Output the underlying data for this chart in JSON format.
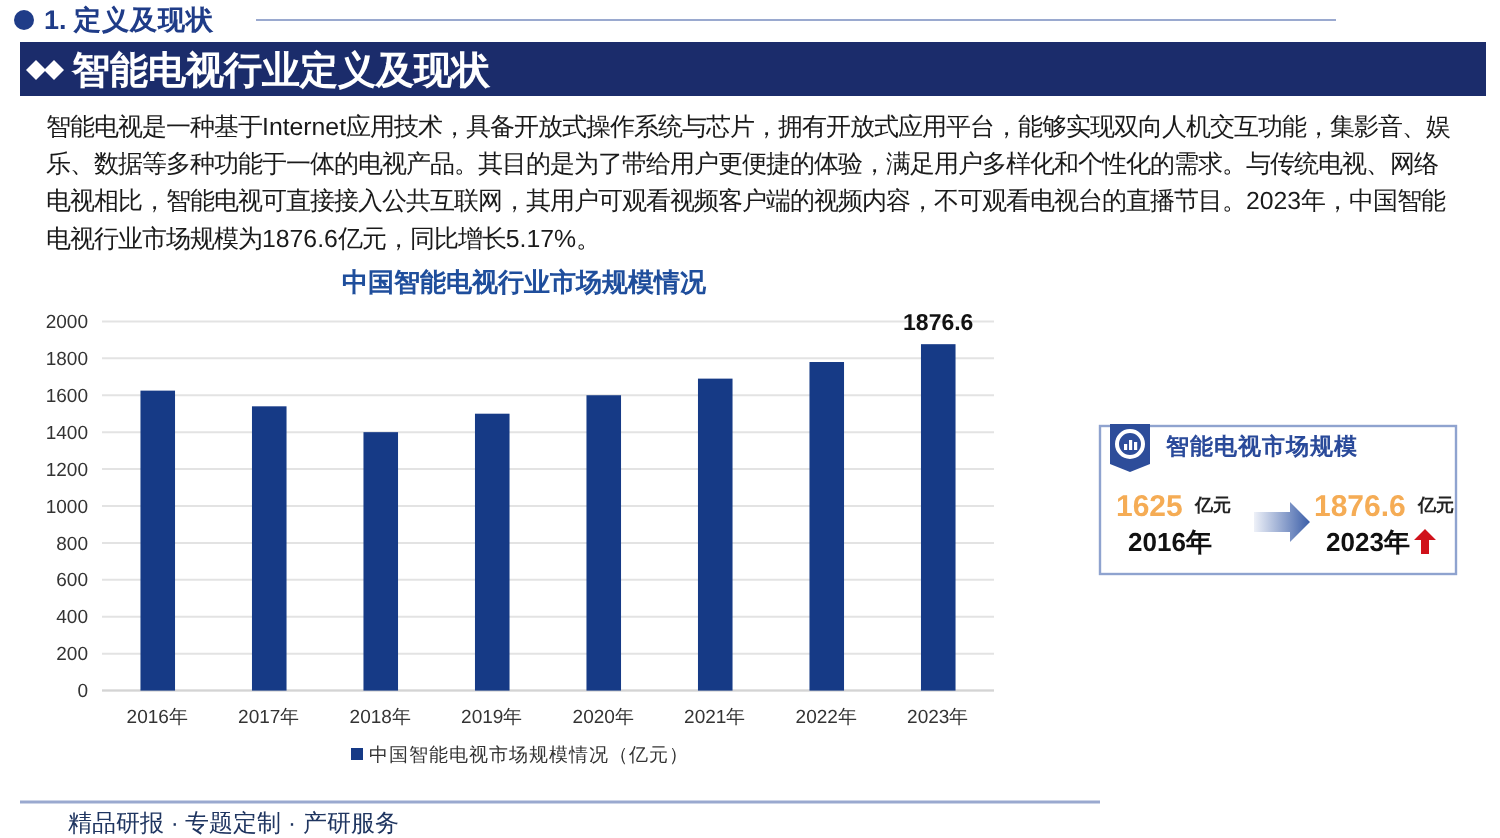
{
  "chart_data": [
    {
      "type": "bar",
      "title": "中国智能电视行业市场规模情况",
      "categories": [
        "2016年",
        "2017年",
        "2018年",
        "2019年",
        "2020年",
        "2021年",
        "2022年",
        "2023年"
      ],
      "series": [
        {
          "name": "中国智能电视市场规模情况（亿元）",
          "color": "#163a86",
          "values": [
            1625,
            1540,
            1400,
            1500,
            1600,
            1690,
            1780,
            1876.6
          ],
          "value_labels": [
            null,
            null,
            null,
            null,
            null,
            null,
            null,
            "1876.6"
          ]
        }
      ],
      "ylim": [
        0,
        2000
      ],
      "yticks": [
        0,
        200,
        400,
        600,
        800,
        1000,
        1200,
        1400,
        1600,
        1800,
        2000
      ],
      "grid": "y",
      "legend": "bottom",
      "annotations": [
        "1. 定义及现状",
        "智能电视行业定义及现状",
        "智能电视是一种基于Internet应用技术，具备开放式操作系统与芯片，拥有开放式应用平台，能够实现双向人机交互功能，集影音、娱乐、数据等多种功能于一体的电视产品。其目的是为了带给用户更便捷的体验，满足用户多样化和个性化的需求。与传统电视、网络电视相比，智能电视可直接接入公共互联网，其用户可观看视频客户端的视频内容，不可观看电视台的直播节目。2023年，中国智能电视行业市场规模为1876.6亿元，同比增长5.17%。",
        "精品研报 · 专题定制 · 产研服务"
      ]
    },
    {
      "type": "other",
      "title": "智能电视市场规模",
      "categories": [
        "2016年",
        "2023年"
      ],
      "values": [
        1625,
        1876.6
      ],
      "data_labels": true,
      "ylabel": "亿元"
    }
  ]
}
